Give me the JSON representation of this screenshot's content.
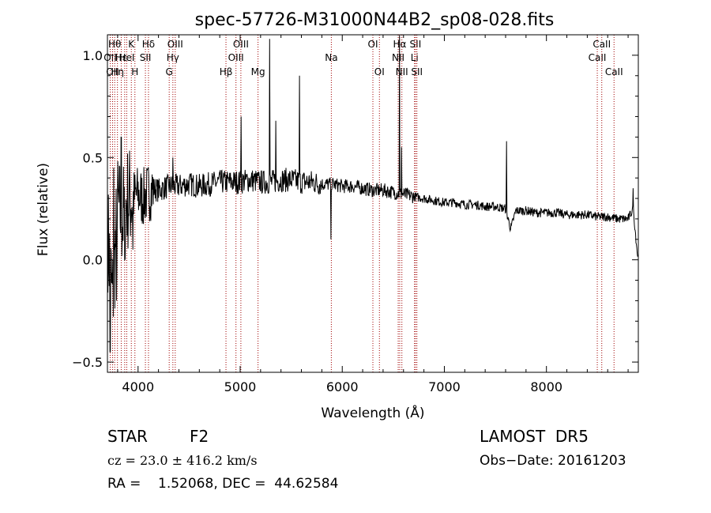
{
  "chart_data": {
    "type": "line",
    "title": "spec-57726-M31000N44B2_sp08-028.fits",
    "xlabel": "Wavelength (Å)",
    "ylabel": "Flux (relative)",
    "xlim": [
      3700,
      8900
    ],
    "ylim": [
      -0.55,
      1.1
    ],
    "xticks": [
      4000,
      5000,
      6000,
      7000,
      8000
    ],
    "yticks": [
      -0.5,
      0.0,
      0.5,
      1.0
    ],
    "ytick_labels": [
      "−0.5",
      "0.0",
      "0.5",
      "1.0"
    ],
    "line_color": "#000000",
    "marker_color": "#a00000",
    "series": [
      {
        "x": [
          3700,
          3750,
          3800,
          3850,
          3900,
          3950,
          4000,
          4050,
          4100,
          4150,
          4200,
          4300,
          4400,
          4500,
          4600,
          4700,
          4800,
          4900,
          5000,
          5100,
          5200,
          5300,
          5400,
          5500,
          5600,
          5700,
          5800,
          5900,
          6000,
          6100,
          6200,
          6300,
          6400,
          6500,
          6600,
          6700,
          6800,
          6900,
          7000,
          7100,
          7200,
          7300,
          7400,
          7500,
          7600,
          7650,
          7700,
          7800,
          7900,
          8000,
          8100,
          8200,
          8300,
          8400,
          8500,
          8600,
          8700,
          8800,
          8850,
          8900
        ],
        "y": [
          0.15,
          -0.2,
          0.25,
          0.2,
          0.3,
          0.3,
          0.32,
          0.3,
          0.33,
          0.35,
          0.34,
          0.36,
          0.36,
          0.37,
          0.36,
          0.37,
          0.38,
          0.38,
          0.38,
          0.39,
          0.38,
          0.38,
          0.39,
          0.39,
          0.38,
          0.38,
          0.37,
          0.37,
          0.36,
          0.36,
          0.35,
          0.34,
          0.34,
          0.33,
          0.32,
          0.31,
          0.3,
          0.29,
          0.28,
          0.28,
          0.27,
          0.27,
          0.26,
          0.26,
          0.25,
          0.15,
          0.24,
          0.24,
          0.23,
          0.23,
          0.23,
          0.22,
          0.22,
          0.22,
          0.21,
          0.21,
          0.2,
          0.2,
          0.25,
          -0.02
        ]
      }
    ],
    "spikes": [
      {
        "x": 3727,
        "y": -0.45
      },
      {
        "x": 3760,
        "y": 0.45
      },
      {
        "x": 3790,
        "y": -0.2
      },
      {
        "x": 3835,
        "y": 0.6
      },
      {
        "x": 3870,
        "y": 0.0
      },
      {
        "x": 3950,
        "y": 0.05
      },
      {
        "x": 4340,
        "y": 0.5
      },
      {
        "x": 5010,
        "y": 0.7
      },
      {
        "x": 5290,
        "y": 1.08
      },
      {
        "x": 5350,
        "y": 0.68
      },
      {
        "x": 5580,
        "y": 0.9
      },
      {
        "x": 5890,
        "y": 0.1
      },
      {
        "x": 6560,
        "y": 1.25
      },
      {
        "x": 6580,
        "y": 0.55
      },
      {
        "x": 7610,
        "y": 0.58
      },
      {
        "x": 8850,
        "y": 0.35
      }
    ],
    "lines": [
      {
        "x": 3727,
        "label": "OII",
        "row": 1
      },
      {
        "x": 3750,
        "label": "OII",
        "row": 2
      },
      {
        "x": 3771,
        "label": "Hθ",
        "row": 0
      },
      {
        "x": 3798,
        "label": "Hη",
        "row": 2
      },
      {
        "x": 3835,
        "label": "Hε",
        "row": 1
      },
      {
        "x": 3869,
        "label": "",
        "row": 1
      },
      {
        "x": 3889,
        "label": "HeI",
        "row": 1
      },
      {
        "x": 3934,
        "label": "K",
        "row": 0
      },
      {
        "x": 3969,
        "label": "H",
        "row": 2
      },
      {
        "x": 4072,
        "label": "SII",
        "row": 1
      },
      {
        "x": 4102,
        "label": "Hδ",
        "row": 0
      },
      {
        "x": 4305,
        "label": "G",
        "row": 2
      },
      {
        "x": 4341,
        "label": "Hγ",
        "row": 1
      },
      {
        "x": 4364,
        "label": "OIII",
        "row": 0
      },
      {
        "x": 4861,
        "label": "Hβ",
        "row": 2
      },
      {
        "x": 4959,
        "label": "OIII",
        "row": 1
      },
      {
        "x": 5007,
        "label": "OIII",
        "row": 0
      },
      {
        "x": 5175,
        "label": "Mg",
        "row": 2
      },
      {
        "x": 5893,
        "label": "Na",
        "row": 1
      },
      {
        "x": 6300,
        "label": "OI",
        "row": 0
      },
      {
        "x": 6364,
        "label": "OI",
        "row": 2
      },
      {
        "x": 6548,
        "label": "NII",
        "row": 1
      },
      {
        "x": 6563,
        "label": "Hα",
        "row": 0
      },
      {
        "x": 6584,
        "label": "NII",
        "row": 2
      },
      {
        "x": 6708,
        "label": "Li",
        "row": 1
      },
      {
        "x": 6717,
        "label": "SII",
        "row": 0
      },
      {
        "x": 6731,
        "label": "SII",
        "row": 2
      },
      {
        "x": 8498,
        "label": "CaII",
        "row": 1
      },
      {
        "x": 8542,
        "label": "CaII",
        "row": 0
      },
      {
        "x": 8662,
        "label": "CaII",
        "row": 2
      }
    ]
  },
  "footer": {
    "object_class": "STAR",
    "subclass": "F2",
    "survey": "LAMOST  DR5",
    "cz": "cz = 23.0 ± 416.2 km/s",
    "obs_date": "Obs−Date: 20161203",
    "coords": "RA =    1.52068, DEC =  44.62584"
  }
}
